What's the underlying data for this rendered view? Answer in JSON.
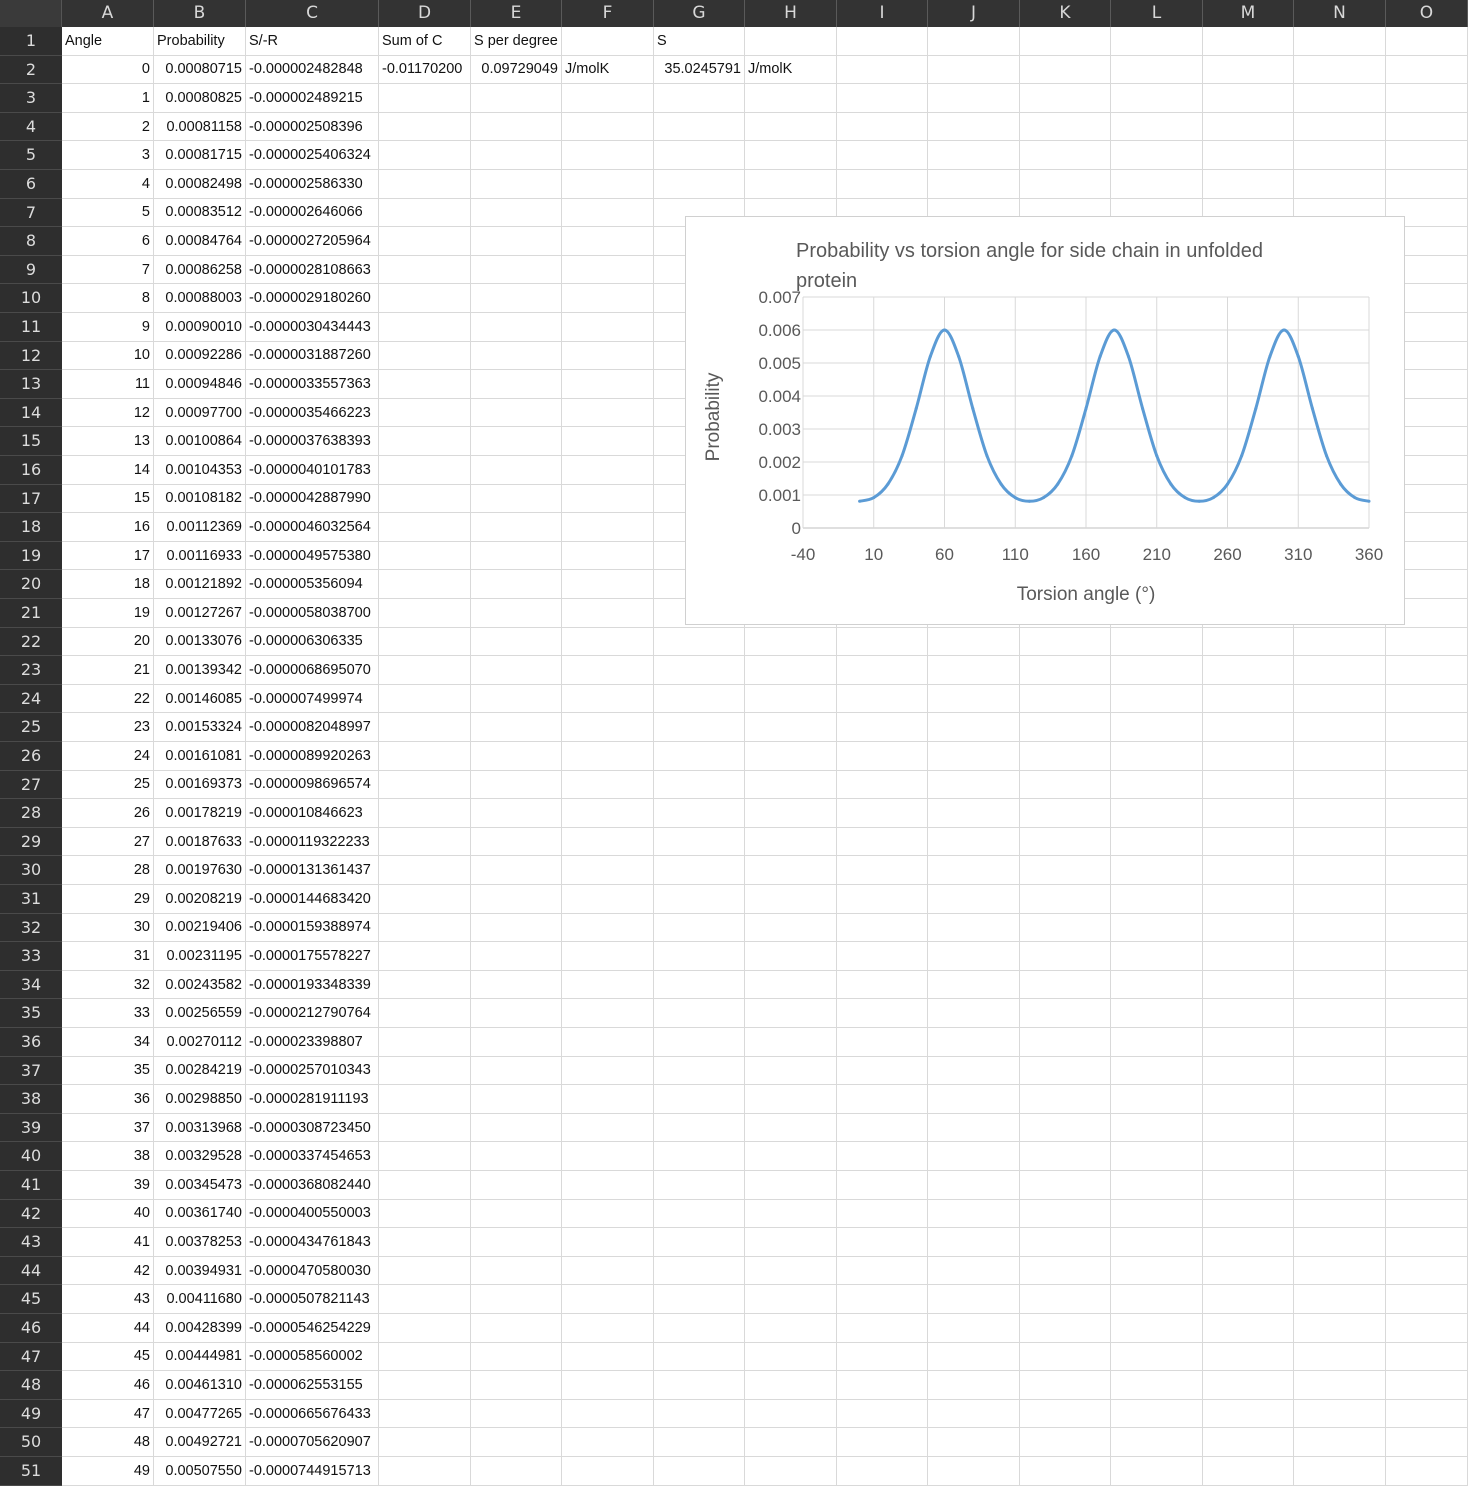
{
  "columns": [
    "A",
    "B",
    "C",
    "D",
    "E",
    "F",
    "G",
    "H",
    "I",
    "J",
    "K",
    "L",
    "M",
    "N",
    "O"
  ],
  "header_row": {
    "A": "Angle",
    "B": "Probability",
    "C": "S/-R",
    "D": "Sum of C",
    "E": "S per degree",
    "G": "S"
  },
  "row2_extra": {
    "D": "-0.01170200",
    "E": "0.09729049",
    "F": "J/molK",
    "G": "35.0245791",
    "H": "J/molK"
  },
  "rows": [
    [
      "0",
      "0.00080715",
      "-0.000002482848"
    ],
    [
      "1",
      "0.00080825",
      "-0.000002489215"
    ],
    [
      "2",
      "0.00081158",
      "-0.000002508396"
    ],
    [
      "3",
      "0.00081715",
      "-0.0000025406324"
    ],
    [
      "4",
      "0.00082498",
      "-0.000002586330"
    ],
    [
      "5",
      "0.00083512",
      "-0.000002646066"
    ],
    [
      "6",
      "0.00084764",
      "-0.0000027205964"
    ],
    [
      "7",
      "0.00086258",
      "-0.0000028108663"
    ],
    [
      "8",
      "0.00088003",
      "-0.0000029180260"
    ],
    [
      "9",
      "0.00090010",
      "-0.0000030434443"
    ],
    [
      "10",
      "0.00092286",
      "-0.0000031887260"
    ],
    [
      "11",
      "0.00094846",
      "-0.0000033557363"
    ],
    [
      "12",
      "0.00097700",
      "-0.0000035466223"
    ],
    [
      "13",
      "0.00100864",
      "-0.0000037638393"
    ],
    [
      "14",
      "0.00104353",
      "-0.0000040101783"
    ],
    [
      "15",
      "0.00108182",
      "-0.0000042887990"
    ],
    [
      "16",
      "0.00112369",
      "-0.0000046032564"
    ],
    [
      "17",
      "0.00116933",
      "-0.0000049575380"
    ],
    [
      "18",
      "0.00121892",
      "-0.000005356094"
    ],
    [
      "19",
      "0.00127267",
      "-0.0000058038700"
    ],
    [
      "20",
      "0.00133076",
      "-0.000006306335"
    ],
    [
      "21",
      "0.00139342",
      "-0.0000068695070"
    ],
    [
      "22",
      "0.00146085",
      "-0.000007499974"
    ],
    [
      "23",
      "0.00153324",
      "-0.0000082048997"
    ],
    [
      "24",
      "0.00161081",
      "-0.0000089920263"
    ],
    [
      "25",
      "0.00169373",
      "-0.0000098696574"
    ],
    [
      "26",
      "0.00178219",
      "-0.000010846623"
    ],
    [
      "27",
      "0.00187633",
      "-0.0000119322233"
    ],
    [
      "28",
      "0.00197630",
      "-0.0000131361437"
    ],
    [
      "29",
      "0.00208219",
      "-0.0000144683420"
    ],
    [
      "30",
      "0.00219406",
      "-0.0000159388974"
    ],
    [
      "31",
      "0.00231195",
      "-0.0000175578227"
    ],
    [
      "32",
      "0.00243582",
      "-0.0000193348339"
    ],
    [
      "33",
      "0.00256559",
      "-0.0000212790764"
    ],
    [
      "34",
      "0.00270112",
      "-0.000023398807"
    ],
    [
      "35",
      "0.00284219",
      "-0.0000257010343"
    ],
    [
      "36",
      "0.00298850",
      "-0.0000281911193"
    ],
    [
      "37",
      "0.00313968",
      "-0.0000308723450"
    ],
    [
      "38",
      "0.00329528",
      "-0.0000337454653"
    ],
    [
      "39",
      "0.00345473",
      "-0.0000368082440"
    ],
    [
      "40",
      "0.00361740",
      "-0.0000400550003"
    ],
    [
      "41",
      "0.00378253",
      "-0.0000434761843"
    ],
    [
      "42",
      "0.00394931",
      "-0.0000470580030"
    ],
    [
      "43",
      "0.00411680",
      "-0.0000507821143"
    ],
    [
      "44",
      "0.00428399",
      "-0.0000546254229"
    ],
    [
      "45",
      "0.00444981",
      "-0.000058560002"
    ],
    [
      "46",
      "0.00461310",
      "-0.000062553155"
    ],
    [
      "47",
      "0.00477265",
      "-0.0000665676433"
    ],
    [
      "48",
      "0.00492721",
      "-0.0000705620907"
    ],
    [
      "49",
      "0.00507550",
      "-0.0000744915713"
    ]
  ],
  "chart_data": {
    "type": "line",
    "title": "Probability vs torsion angle for side chain in unfolded protein",
    "xlabel": "Torsion angle (°)",
    "ylabel": "Probability",
    "xlim": [
      -40,
      360
    ],
    "ylim": [
      0,
      0.007
    ],
    "x_ticks": [
      "-40",
      "10",
      "60",
      "110",
      "160",
      "210",
      "260",
      "310",
      "360"
    ],
    "y_ticks": [
      "0",
      "0.001",
      "0.002",
      "0.003",
      "0.004",
      "0.005",
      "0.006",
      "0.007"
    ],
    "series_color": "#5b9bd5",
    "grid": true,
    "x": [
      0,
      10,
      20,
      30,
      40,
      50,
      60,
      70,
      80,
      90,
      100,
      110,
      120,
      130,
      140,
      150,
      160,
      170,
      180,
      190,
      200,
      210,
      220,
      230,
      240,
      250,
      260,
      270,
      280,
      290,
      300,
      310,
      320,
      330,
      340,
      350,
      360
    ],
    "y": [
      0.00081,
      0.00092,
      0.00133,
      0.00219,
      0.00362,
      0.0052,
      0.006,
      0.0052,
      0.00362,
      0.00219,
      0.00133,
      0.00092,
      0.00081,
      0.00092,
      0.00133,
      0.00219,
      0.00362,
      0.0052,
      0.006,
      0.0052,
      0.00362,
      0.00219,
      0.00133,
      0.00092,
      0.00081,
      0.00092,
      0.00133,
      0.00219,
      0.00362,
      0.0052,
      0.006,
      0.0052,
      0.00362,
      0.00219,
      0.00133,
      0.00092,
      0.00081
    ]
  }
}
